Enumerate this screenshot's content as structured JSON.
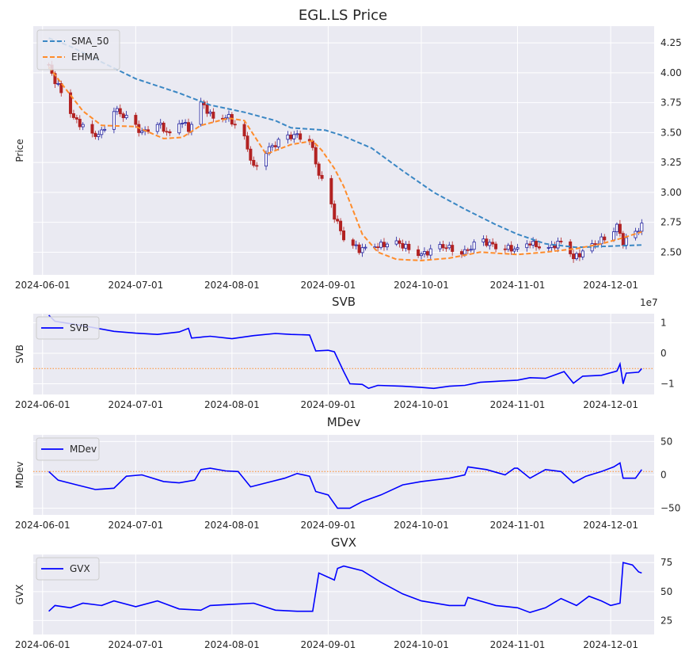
{
  "figure": {
    "title": "EGL.LS Price"
  },
  "chart_data": [
    {
      "type": "candlestick",
      "title": "",
      "ylabel": "Price",
      "ylim": [
        2.31,
        4.39
      ],
      "yticks": [
        2.5,
        2.75,
        3.0,
        3.25,
        3.5,
        3.75,
        4.0,
        4.25
      ],
      "ytick_labels": [
        "2.50",
        "2.75",
        "3.00",
        "3.25",
        "3.50",
        "3.75",
        "4.00",
        "4.25"
      ],
      "xlim": [
        "2024-05-29",
        "2024-12-15"
      ],
      "xticks": [
        "2024-06-01",
        "2024-07-01",
        "2024-08-01",
        "2024-09-01",
        "2024-10-01",
        "2024-11-01",
        "2024-12-01"
      ],
      "legend": {
        "position": "top-left",
        "entries": [
          "SMA_50",
          "EHMA"
        ]
      },
      "colors": {
        "up": "#1f1f9e",
        "down": "#b22222",
        "sma": "#3b87c4",
        "ehma": "#ff8c2b"
      },
      "close_anchors": [
        [
          "2024-06-03",
          4.05
        ],
        [
          "2024-06-05",
          3.93
        ],
        [
          "2024-06-08",
          3.8
        ],
        [
          "2024-06-11",
          3.62
        ],
        [
          "2024-06-14",
          3.55
        ],
        [
          "2024-06-17",
          3.47
        ],
        [
          "2024-06-20",
          3.5
        ],
        [
          "2024-06-24",
          3.7
        ],
        [
          "2024-06-28",
          3.62
        ],
        [
          "2024-07-03",
          3.5
        ],
        [
          "2024-07-08",
          3.58
        ],
        [
          "2024-07-12",
          3.48
        ],
        [
          "2024-07-16",
          3.6
        ],
        [
          "2024-07-18",
          3.52
        ],
        [
          "2024-07-22",
          3.75
        ],
        [
          "2024-07-26",
          3.62
        ],
        [
          "2024-07-31",
          3.63
        ],
        [
          "2024-08-05",
          3.45
        ],
        [
          "2024-08-08",
          3.2
        ],
        [
          "2024-08-12",
          3.35
        ],
        [
          "2024-08-16",
          3.42
        ],
        [
          "2024-08-21",
          3.48
        ],
        [
          "2024-08-26",
          3.45
        ],
        [
          "2024-08-29",
          3.15
        ],
        [
          "2024-09-01",
          2.98
        ],
        [
          "2024-09-03",
          2.8
        ],
        [
          "2024-09-06",
          2.62
        ],
        [
          "2024-09-11",
          2.52
        ],
        [
          "2024-09-16",
          2.55
        ],
        [
          "2024-09-23",
          2.58
        ],
        [
          "2024-10-01",
          2.48
        ],
        [
          "2024-10-08",
          2.55
        ],
        [
          "2024-10-15",
          2.5
        ],
        [
          "2024-10-20",
          2.6
        ],
        [
          "2024-10-25",
          2.55
        ],
        [
          "2024-11-01",
          2.52
        ],
        [
          "2024-11-05",
          2.58
        ],
        [
          "2024-11-10",
          2.52
        ],
        [
          "2024-11-16",
          2.6
        ],
        [
          "2024-11-19",
          2.45
        ],
        [
          "2024-11-25",
          2.55
        ],
        [
          "2024-11-29",
          2.62
        ],
        [
          "2024-12-03",
          2.72
        ],
        [
          "2024-12-05",
          2.58
        ],
        [
          "2024-12-09",
          2.65
        ],
        [
          "2024-12-11",
          2.74
        ]
      ],
      "sma_50": [
        [
          "2024-06-03",
          4.29
        ],
        [
          "2024-06-10",
          4.22
        ],
        [
          "2024-06-20",
          4.09
        ],
        [
          "2024-07-01",
          3.95
        ],
        [
          "2024-07-15",
          3.83
        ],
        [
          "2024-07-25",
          3.73
        ],
        [
          "2024-08-05",
          3.67
        ],
        [
          "2024-08-15",
          3.6
        ],
        [
          "2024-08-20",
          3.54
        ],
        [
          "2024-08-31",
          3.52
        ],
        [
          "2024-09-05",
          3.48
        ],
        [
          "2024-09-15",
          3.37
        ],
        [
          "2024-09-25",
          3.18
        ],
        [
          "2024-10-05",
          3.0
        ],
        [
          "2024-10-15",
          2.86
        ],
        [
          "2024-10-25",
          2.73
        ],
        [
          "2024-11-01",
          2.65
        ],
        [
          "2024-11-10",
          2.57
        ],
        [
          "2024-11-20",
          2.54
        ],
        [
          "2024-12-11",
          2.56
        ]
      ],
      "ehma": [
        [
          "2024-06-03",
          4.05
        ],
        [
          "2024-06-08",
          3.88
        ],
        [
          "2024-06-14",
          3.68
        ],
        [
          "2024-06-20",
          3.56
        ],
        [
          "2024-07-01",
          3.55
        ],
        [
          "2024-07-10",
          3.45
        ],
        [
          "2024-07-16",
          3.46
        ],
        [
          "2024-07-22",
          3.56
        ],
        [
          "2024-07-31",
          3.62
        ],
        [
          "2024-08-05",
          3.6
        ],
        [
          "2024-08-12",
          3.32
        ],
        [
          "2024-08-20",
          3.4
        ],
        [
          "2024-08-27",
          3.43
        ],
        [
          "2024-08-30",
          3.35
        ],
        [
          "2024-09-03",
          3.2
        ],
        [
          "2024-09-06",
          3.05
        ],
        [
          "2024-09-09",
          2.85
        ],
        [
          "2024-09-12",
          2.65
        ],
        [
          "2024-09-17",
          2.5
        ],
        [
          "2024-09-23",
          2.44
        ],
        [
          "2024-10-01",
          2.43
        ],
        [
          "2024-10-10",
          2.45
        ],
        [
          "2024-10-20",
          2.5
        ],
        [
          "2024-11-01",
          2.48
        ],
        [
          "2024-11-10",
          2.5
        ],
        [
          "2024-11-20",
          2.53
        ],
        [
          "2024-11-28",
          2.57
        ],
        [
          "2024-12-05",
          2.62
        ],
        [
          "2024-12-11",
          2.67
        ]
      ]
    },
    {
      "type": "line",
      "title": "SVB",
      "ylabel": "SVB",
      "offset_label": "1e7",
      "ylim": [
        -1.35,
        1.3
      ],
      "yticks": [
        -1,
        0,
        1
      ],
      "ytick_labels": [
        "−1",
        "0",
        "1"
      ],
      "xlim": [
        "2024-05-29",
        "2024-12-15"
      ],
      "xticks": [
        "2024-06-01",
        "2024-07-01",
        "2024-08-01",
        "2024-09-01",
        "2024-10-01",
        "2024-11-01",
        "2024-12-01"
      ],
      "reference_line": -0.5,
      "legend": {
        "position": "top-left",
        "entries": [
          "SVB"
        ]
      },
      "series": [
        {
          "name": "SVB",
          "color": "#0000ff",
          "points": [
            [
              "2024-06-03",
              1.25
            ],
            [
              "2024-06-05",
              1.05
            ],
            [
              "2024-06-10",
              0.97
            ],
            [
              "2024-06-17",
              0.85
            ],
            [
              "2024-06-24",
              0.72
            ],
            [
              "2024-07-01",
              0.66
            ],
            [
              "2024-07-08",
              0.62
            ],
            [
              "2024-07-15",
              0.7
            ],
            [
              "2024-07-18",
              0.82
            ],
            [
              "2024-07-19",
              0.5
            ],
            [
              "2024-07-25",
              0.56
            ],
            [
              "2024-08-01",
              0.48
            ],
            [
              "2024-08-08",
              0.58
            ],
            [
              "2024-08-15",
              0.65
            ],
            [
              "2024-08-20",
              0.62
            ],
            [
              "2024-08-26",
              0.6
            ],
            [
              "2024-08-28",
              0.08
            ],
            [
              "2024-09-01",
              0.1
            ],
            [
              "2024-09-03",
              0.05
            ],
            [
              "2024-09-06",
              -0.6
            ],
            [
              "2024-09-08",
              -1.0
            ],
            [
              "2024-09-12",
              -1.02
            ],
            [
              "2024-09-14",
              -1.15
            ],
            [
              "2024-09-17",
              -1.05
            ],
            [
              "2024-09-25",
              -1.08
            ],
            [
              "2024-10-01",
              -1.12
            ],
            [
              "2024-10-05",
              -1.15
            ],
            [
              "2024-10-10",
              -1.08
            ],
            [
              "2024-10-15",
              -1.05
            ],
            [
              "2024-10-20",
              -0.95
            ],
            [
              "2024-10-25",
              -0.92
            ],
            [
              "2024-11-01",
              -0.88
            ],
            [
              "2024-11-05",
              -0.8
            ],
            [
              "2024-11-10",
              -0.82
            ],
            [
              "2024-11-16",
              -0.6
            ],
            [
              "2024-11-19",
              -0.98
            ],
            [
              "2024-11-22",
              -0.75
            ],
            [
              "2024-11-28",
              -0.72
            ],
            [
              "2024-12-03",
              -0.58
            ],
            [
              "2024-12-04",
              -0.35
            ],
            [
              "2024-12-05",
              -1.0
            ],
            [
              "2024-12-06",
              -0.65
            ],
            [
              "2024-12-10",
              -0.62
            ],
            [
              "2024-12-11",
              -0.5
            ]
          ]
        }
      ]
    },
    {
      "type": "line",
      "title": "MDev",
      "ylabel": "MDev",
      "ylim": [
        -60,
        60
      ],
      "yticks": [
        -50,
        0,
        50
      ],
      "ytick_labels": [
        "−50",
        "0",
        "50"
      ],
      "xlim": [
        "2024-05-29",
        "2024-12-15"
      ],
      "xticks": [
        "2024-06-01",
        "2024-07-01",
        "2024-08-01",
        "2024-09-01",
        "2024-10-01",
        "2024-11-01",
        "2024-12-01"
      ],
      "reference_line": 5,
      "legend": {
        "position": "top-left",
        "entries": [
          "MDev"
        ]
      },
      "series": [
        {
          "name": "MDev",
          "color": "#0000ff",
          "points": [
            [
              "2024-06-03",
              5
            ],
            [
              "2024-06-06",
              -8
            ],
            [
              "2024-06-12",
              -15
            ],
            [
              "2024-06-18",
              -22
            ],
            [
              "2024-06-24",
              -20
            ],
            [
              "2024-06-28",
              -2
            ],
            [
              "2024-07-03",
              0
            ],
            [
              "2024-07-10",
              -10
            ],
            [
              "2024-07-15",
              -12
            ],
            [
              "2024-07-20",
              -8
            ],
            [
              "2024-07-22",
              8
            ],
            [
              "2024-07-25",
              10
            ],
            [
              "2024-07-30",
              6
            ],
            [
              "2024-08-03",
              5
            ],
            [
              "2024-08-07",
              -18
            ],
            [
              "2024-08-12",
              -12
            ],
            [
              "2024-08-18",
              -5
            ],
            [
              "2024-08-22",
              2
            ],
            [
              "2024-08-26",
              -2
            ],
            [
              "2024-08-28",
              -25
            ],
            [
              "2024-09-01",
              -30
            ],
            [
              "2024-09-04",
              -50
            ],
            [
              "2024-09-08",
              -50
            ],
            [
              "2024-09-12",
              -40
            ],
            [
              "2024-09-18",
              -30
            ],
            [
              "2024-09-25",
              -15
            ],
            [
              "2024-10-01",
              -10
            ],
            [
              "2024-10-10",
              -5
            ],
            [
              "2024-10-15",
              0
            ],
            [
              "2024-10-16",
              12
            ],
            [
              "2024-10-22",
              8
            ],
            [
              "2024-10-28",
              0
            ],
            [
              "2024-10-31",
              10
            ],
            [
              "2024-11-01",
              10
            ],
            [
              "2024-11-05",
              -5
            ],
            [
              "2024-11-10",
              8
            ],
            [
              "2024-11-15",
              5
            ],
            [
              "2024-11-19",
              -12
            ],
            [
              "2024-11-23",
              -2
            ],
            [
              "2024-11-28",
              5
            ],
            [
              "2024-12-02",
              12
            ],
            [
              "2024-12-04",
              18
            ],
            [
              "2024-12-05",
              -5
            ],
            [
              "2024-12-09",
              -5
            ],
            [
              "2024-12-11",
              8
            ]
          ]
        }
      ]
    },
    {
      "type": "line",
      "title": "GVX",
      "ylabel": "GVX",
      "ylim": [
        13,
        82
      ],
      "yticks": [
        25,
        50,
        75
      ],
      "ytick_labels": [
        "25",
        "50",
        "75"
      ],
      "xlim": [
        "2024-05-29",
        "2024-12-15"
      ],
      "xticks": [
        "2024-06-01",
        "2024-07-01",
        "2024-08-01",
        "2024-09-01",
        "2024-10-01",
        "2024-11-01",
        "2024-12-01"
      ],
      "legend": {
        "position": "top-left",
        "entries": [
          "GVX"
        ]
      },
      "series": [
        {
          "name": "GVX",
          "color": "#0000ff",
          "points": [
            [
              "2024-06-03",
              33
            ],
            [
              "2024-06-05",
              38
            ],
            [
              "2024-06-10",
              36
            ],
            [
              "2024-06-14",
              40
            ],
            [
              "2024-06-20",
              38
            ],
            [
              "2024-06-24",
              42
            ],
            [
              "2024-07-01",
              37
            ],
            [
              "2024-07-08",
              42
            ],
            [
              "2024-07-15",
              35
            ],
            [
              "2024-07-22",
              34
            ],
            [
              "2024-07-25",
              38
            ],
            [
              "2024-08-01",
              39
            ],
            [
              "2024-08-08",
              40
            ],
            [
              "2024-08-15",
              34
            ],
            [
              "2024-08-22",
              33
            ],
            [
              "2024-08-27",
              33
            ],
            [
              "2024-08-29",
              66
            ],
            [
              "2024-09-03",
              60
            ],
            [
              "2024-09-04",
              70
            ],
            [
              "2024-09-06",
              72
            ],
            [
              "2024-09-12",
              68
            ],
            [
              "2024-09-18",
              58
            ],
            [
              "2024-09-25",
              48
            ],
            [
              "2024-10-01",
              42
            ],
            [
              "2024-10-10",
              38
            ],
            [
              "2024-10-15",
              38
            ],
            [
              "2024-10-16",
              45
            ],
            [
              "2024-10-25",
              38
            ],
            [
              "2024-11-01",
              36
            ],
            [
              "2024-11-05",
              32
            ],
            [
              "2024-11-10",
              36
            ],
            [
              "2024-11-15",
              44
            ],
            [
              "2024-11-20",
              38
            ],
            [
              "2024-11-24",
              46
            ],
            [
              "2024-11-28",
              42
            ],
            [
              "2024-12-01",
              38
            ],
            [
              "2024-12-04",
              40
            ],
            [
              "2024-12-05",
              75
            ],
            [
              "2024-12-08",
              73
            ],
            [
              "2024-12-10",
              67
            ],
            [
              "2024-12-11",
              66
            ]
          ]
        }
      ]
    }
  ]
}
